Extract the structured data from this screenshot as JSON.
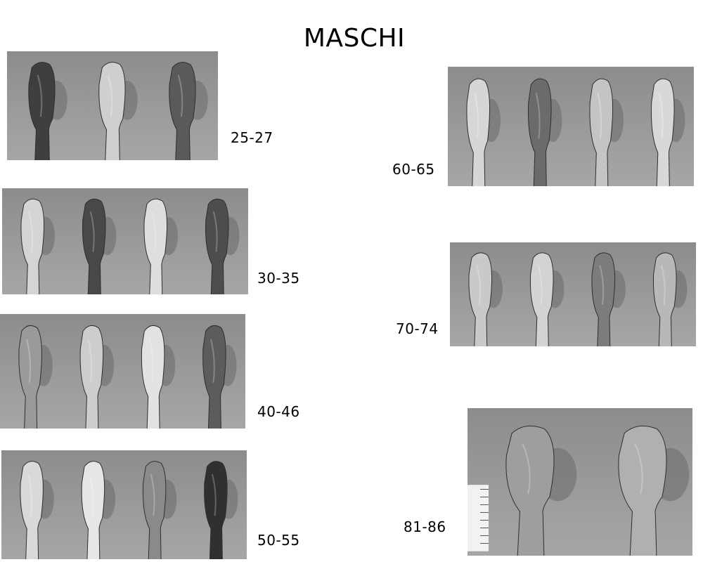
{
  "title": "MASCHI",
  "groups": [
    {
      "label": "25-27",
      "bones": [
        {
          "shade": "#3f3f3f"
        },
        {
          "shade": "#cfcfcf"
        },
        {
          "shade": "#5a5a5a"
        }
      ]
    },
    {
      "label": "30-35",
      "bones": [
        {
          "shade": "#d4d4d4"
        },
        {
          "shade": "#484848"
        },
        {
          "shade": "#dedede"
        },
        {
          "shade": "#4d4d4d"
        }
      ]
    },
    {
      "label": "40-46",
      "bones": [
        {
          "shade": "#9a9a9a"
        },
        {
          "shade": "#cdcdcd"
        },
        {
          "shade": "#e2e2e2"
        },
        {
          "shade": "#5c5c5c"
        }
      ]
    },
    {
      "label": "50-55",
      "bones": [
        {
          "shade": "#d9d9d9"
        },
        {
          "shade": "#e6e6e6"
        },
        {
          "shade": "#8a8a8a"
        },
        {
          "shade": "#303030"
        }
      ]
    },
    {
      "label": "60-65",
      "bones": [
        {
          "shade": "#d6d6d6"
        },
        {
          "shade": "#6b6b6b"
        },
        {
          "shade": "#c4c4c4"
        },
        {
          "shade": "#d8d8d8"
        }
      ]
    },
    {
      "label": "70-74",
      "bones": [
        {
          "shade": "#c9c9c9"
        },
        {
          "shade": "#d3d3d3"
        },
        {
          "shade": "#7c7c7c"
        },
        {
          "shade": "#b8b8b8"
        }
      ]
    },
    {
      "label": "81-86",
      "bones": [
        {
          "shade": "#9e9e9e"
        },
        {
          "shade": "#b0b0b0"
        }
      ]
    }
  ]
}
